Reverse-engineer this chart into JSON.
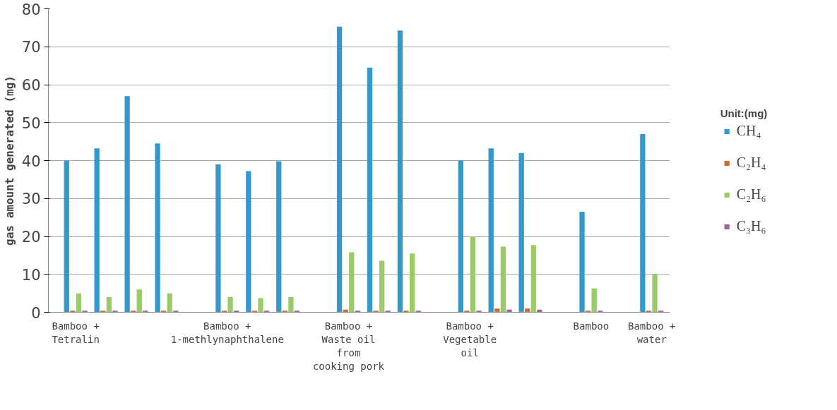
{
  "chart_data": {
    "type": "bar",
    "ylabel": "gas amount generated (mg)",
    "legend_title": "Unit:(mg)",
    "categories": [
      "Bamboo +\nTetralin",
      null,
      null,
      null,
      null,
      "Bamboo +\n1-methlynaphthalene",
      null,
      null,
      null,
      "Bamboo +\nWaste oil\nfrom\ncooking pork",
      null,
      null,
      null,
      "Bamboo +\nVegetable\noil",
      null,
      null,
      null,
      "Bamboo",
      null,
      "Bamboo +\nwater"
    ],
    "series": [
      {
        "name": "CH₄",
        "color": "#3399cc",
        "values": [
          40,
          43.2,
          57,
          44.5,
          null,
          39,
          37.2,
          39.8,
          null,
          75.3,
          64.5,
          74.3,
          null,
          40,
          43.2,
          42,
          null,
          26.5,
          null,
          47
        ]
      },
      {
        "name": "C₂H₄",
        "color": "#d06a35",
        "values": [
          0.4,
          0.4,
          0.4,
          0.4,
          null,
          0.4,
          0.4,
          0.4,
          null,
          0.7,
          0.4,
          0.4,
          null,
          0.4,
          1.0,
          1.0,
          null,
          0.4,
          null,
          0.4
        ]
      },
      {
        "name": "C₂H₆",
        "color": "#99cc66",
        "values": [
          5,
          4,
          6,
          5,
          null,
          4,
          3.7,
          4,
          null,
          15.8,
          13.6,
          15.5,
          null,
          20,
          17.3,
          17.7,
          null,
          6.3,
          null,
          10
        ]
      },
      {
        "name": "C₃H₆",
        "color": "#996699",
        "values": [
          0.4,
          0.4,
          0.4,
          0.4,
          null,
          0.4,
          0.4,
          0.4,
          null,
          0.4,
          0.4,
          0.4,
          null,
          0.4,
          0.7,
          0.7,
          null,
          0.4,
          null,
          0.4
        ]
      }
    ],
    "ylim": [
      0,
      80
    ],
    "yticks": [
      0,
      10,
      20,
      30,
      40,
      50,
      60,
      70,
      80
    ],
    "grid": "y",
    "legend": "right"
  }
}
